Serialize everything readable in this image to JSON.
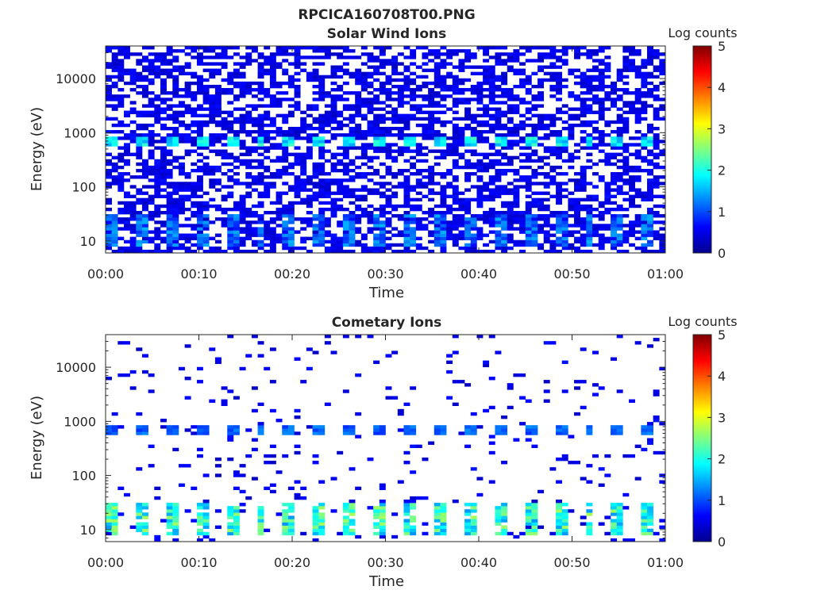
{
  "figure_title": "RPCICA160708T00.PNG",
  "colormap": [
    "#00008f",
    "#0000ff",
    "#0080ff",
    "#00ffff",
    "#80ff80",
    "#ffff00",
    "#ff8000",
    "#ff0000",
    "#800000"
  ],
  "chart_data": [
    {
      "type": "heatmap",
      "title": "Solar Wind Ions",
      "xlabel": "Time",
      "ylabel": "Energy (eV)",
      "xticks": [
        "00:00",
        "00:10",
        "00:20",
        "00:30",
        "00:40",
        "00:50",
        "01:00"
      ],
      "xlim_minutes": [
        0,
        60
      ],
      "yscale": "log",
      "yticks": [
        10,
        100,
        1000,
        10000
      ],
      "ytick_labels": [
        "10",
        "100",
        "1000",
        "10000"
      ],
      "ylim": [
        6,
        40000
      ],
      "colorbar": {
        "label": "Log counts",
        "min": 0,
        "max": 5,
        "ticks": [
          "0",
          "1",
          "2",
          "3",
          "4",
          "5"
        ]
      },
      "features": {
        "background_density": 0.55,
        "background_value": 0.3,
        "peak_energy_ev": 700,
        "peak_value": 2.0,
        "peak_period_min": 3.2,
        "low_energy_band_ev": [
          8,
          30
        ],
        "low_energy_peak_value": 1.5
      }
    },
    {
      "type": "heatmap",
      "title": "Cometary Ions",
      "xlabel": "Time",
      "ylabel": "Energy (eV)",
      "xticks": [
        "00:00",
        "00:10",
        "00:20",
        "00:30",
        "00:40",
        "00:50",
        "01:00"
      ],
      "xlim_minutes": [
        0,
        60
      ],
      "yscale": "log",
      "yticks": [
        10,
        100,
        1000,
        10000
      ],
      "ytick_labels": [
        "10",
        "100",
        "1000",
        "10000"
      ],
      "ylim": [
        6,
        40000
      ],
      "colorbar": {
        "label": "Log counts",
        "min": 0,
        "max": 5,
        "ticks": [
          "0",
          "1",
          "2",
          "3",
          "4",
          "5"
        ]
      },
      "features": {
        "background_density": 0.06,
        "background_value": 0.3,
        "peak_energy_ev": 700,
        "peak_value": 1.2,
        "peak_period_min": 3.2,
        "low_energy_band_ev": [
          8,
          30
        ],
        "low_energy_peak_value": 2.7
      }
    }
  ]
}
